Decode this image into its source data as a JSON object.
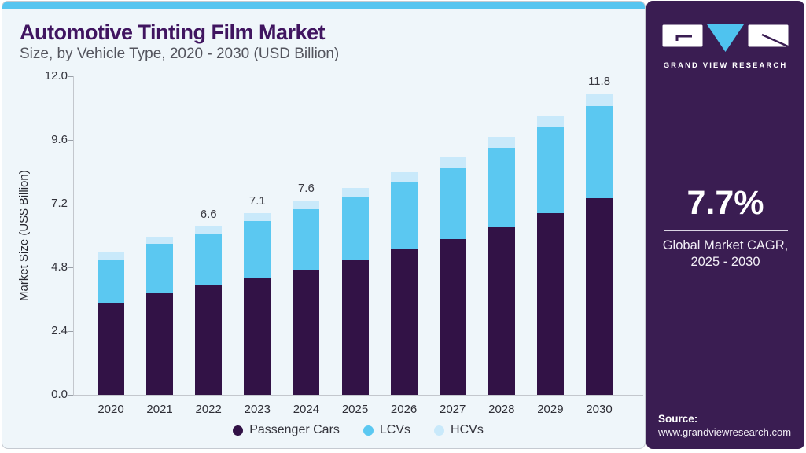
{
  "header": {
    "title": "Automotive Tinting Film Market",
    "subtitle": "Size, by Vehicle Type, 2020 - 2030 (USD Billion)"
  },
  "chart_data": {
    "type": "bar",
    "stacked": true,
    "title": "Automotive Tinting Film Market Size, by Vehicle Type, 2020 - 2030 (USD Billion)",
    "categories": [
      "2020",
      "2021",
      "2022",
      "2023",
      "2024",
      "2025",
      "2026",
      "2027",
      "2028",
      "2029",
      "2030"
    ],
    "series": [
      {
        "name": "Passenger Cars",
        "color_key": "passenger_cars",
        "values": [
          3.6,
          4.0,
          4.3,
          4.6,
          4.9,
          5.25,
          5.7,
          6.1,
          6.55,
          7.1,
          7.7
        ]
      },
      {
        "name": "LCVs",
        "color_key": "lcvs",
        "values": [
          1.7,
          1.9,
          2.0,
          2.2,
          2.35,
          2.5,
          2.65,
          2.8,
          3.1,
          3.35,
          3.6
        ]
      },
      {
        "name": "HCVs",
        "color_key": "hcvs",
        "values": [
          0.3,
          0.3,
          0.3,
          0.3,
          0.35,
          0.35,
          0.35,
          0.4,
          0.45,
          0.45,
          0.5
        ]
      }
    ],
    "totals": [
      5.6,
      6.2,
      6.6,
      7.1,
      7.6,
      8.1,
      8.7,
      9.3,
      10.1,
      10.9,
      11.8
    ],
    "bar_labels": {
      "2022": "6.6",
      "2023": "7.1",
      "2024": "7.6",
      "2030": "11.8"
    },
    "xlabel": "",
    "ylabel": "Market Size (US$ Billion)",
    "ylim": [
      0,
      12
    ],
    "yticks": [
      "0.0",
      "2.4",
      "4.8",
      "7.2",
      "9.6",
      "12.0"
    ],
    "grid": false,
    "legend_position": "bottom"
  },
  "sidebar": {
    "logo_text": "GRAND VIEW RESEARCH",
    "cagr_value": "7.7%",
    "cagr_caption_line1": "Global Market CAGR,",
    "cagr_caption_line2": "2025 - 2030",
    "source_label": "Source:",
    "source_url": "www.grandviewresearch.com"
  },
  "colors": {
    "passenger_cars": "#321246",
    "lcvs": "#5bc8f1",
    "hcvs": "#c9e9fa",
    "accent_blue": "#56c5f0",
    "sidebar_bg": "#3a1d52",
    "title_text": "#401560",
    "card_bg": "#eff6fa",
    "axis_line": "#c3c7cd"
  }
}
